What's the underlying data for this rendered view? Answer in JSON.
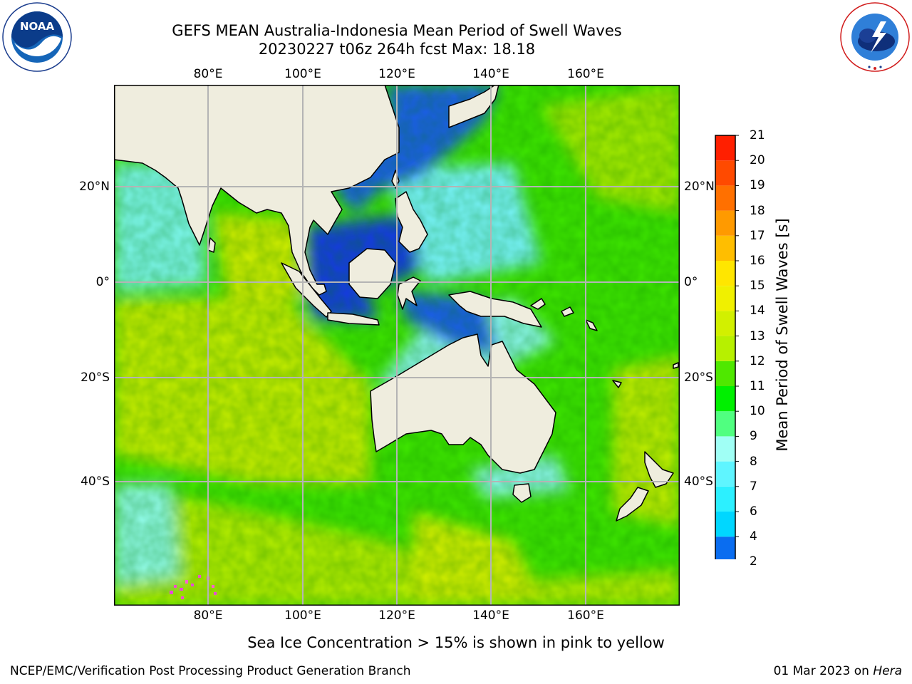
{
  "header": {
    "title_line1": "GEFS MEAN Australia-Indonesia Mean Period of Swell Waves",
    "title_line2": "20230227 t06z 264h fcst   Max: 18.18"
  },
  "logos": {
    "left": "NOAA",
    "left_ring_text": "NATIONAL OCEANIC AND ATMOSPHERIC ADMINISTRATION · U.S. DEPARTMENT OF COMMERCE",
    "right_ring_text": "NATIONAL WEATHER SERVICE"
  },
  "map": {
    "lon_labels": [
      "80°E",
      "100°E",
      "120°E",
      "140°E",
      "160°E"
    ],
    "lat_labels": [
      "20°N",
      "0°",
      "20°S",
      "40°S"
    ],
    "lon_range": [
      60,
      180
    ],
    "lat_range": [
      -68,
      42
    ],
    "grid": true
  },
  "colorbar": {
    "label": "Mean Period of Swell Waves [s]",
    "ticks": [
      "2",
      "4",
      "6",
      "7",
      "8",
      "9",
      "10",
      "11",
      "12",
      "13",
      "14",
      "15",
      "16",
      "17",
      "18",
      "19",
      "20",
      "21"
    ],
    "colors": [
      "#0a6df0",
      "#00d7ff",
      "#2cf0ff",
      "#5ff5ff",
      "#a0fff5",
      "#50ff80",
      "#00f000",
      "#4fe800",
      "#b7f000",
      "#d2f000",
      "#f0f000",
      "#ffe600",
      "#ffbe00",
      "#ff9a00",
      "#ff7000",
      "#ff4a00",
      "#ff1f00"
    ],
    "under_color": "#0000ff",
    "max": 18.18
  },
  "notes": {
    "sea_ice": "Sea Ice Concentration > 15% is shown in pink to yellow"
  },
  "footer": {
    "left": "NCEP/EMC/Verification Post Processing Product Generation Branch",
    "date": "01 Mar 2023 on ",
    "machine": "Hera"
  }
}
